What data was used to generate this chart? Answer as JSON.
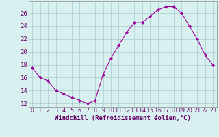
{
  "x": [
    0,
    1,
    2,
    3,
    4,
    5,
    6,
    7,
    8,
    9,
    10,
    11,
    12,
    13,
    14,
    15,
    16,
    17,
    18,
    19,
    20,
    21,
    22,
    23
  ],
  "y": [
    17.5,
    16.0,
    15.5,
    14.0,
    13.5,
    13.0,
    12.5,
    12.0,
    12.5,
    16.5,
    19.0,
    21.0,
    23.0,
    24.5,
    24.5,
    25.5,
    26.5,
    27.0,
    27.0,
    26.0,
    24.0,
    22.0,
    19.5,
    18.0
  ],
  "line_color": "#990099",
  "marker": "D",
  "marker_size": 2,
  "bg_color": "#d8f0f0",
  "grid_color": "#aacccc",
  "xlabel": "Windchill (Refroidissement éolien,°C)",
  "xlabel_color": "#660066",
  "tick_color": "#660066",
  "ylim": [
    11.5,
    27.8
  ],
  "yticks": [
    12,
    14,
    16,
    18,
    20,
    22,
    24,
    26
  ],
  "font_size": 6.5
}
